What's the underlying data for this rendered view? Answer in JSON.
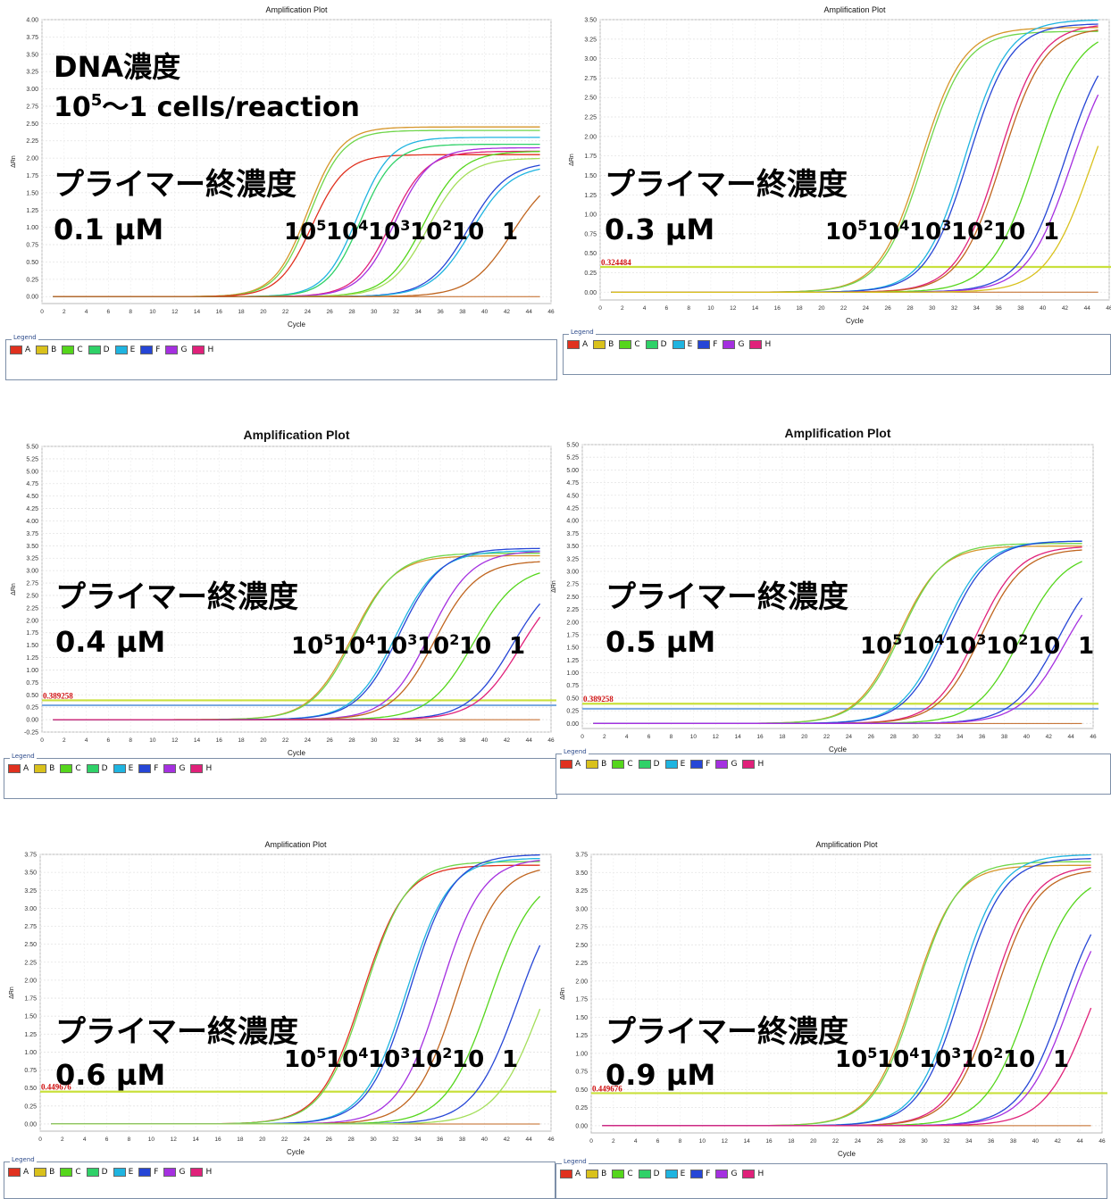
{
  "overlay": {
    "dna_title": "DNA濃度",
    "dna_range_base": "10",
    "dna_range_exp": "5",
    "dna_range_rest": "～1 cells/reaction",
    "primer_label": "プライマー終濃度",
    "dilution_series": [
      {
        "base": "10",
        "exp": "5"
      },
      {
        "base": "10",
        "exp": "4"
      },
      {
        "base": "10",
        "exp": "3"
      },
      {
        "base": "10",
        "exp": "2"
      },
      {
        "base": "10",
        "exp": ""
      },
      {
        "base": "1",
        "exp": ""
      }
    ]
  },
  "legend": {
    "title": "Legend",
    "items": [
      {
        "label": "A",
        "color": "#e0311f"
      },
      {
        "label": "B",
        "color": "#d9c11c"
      },
      {
        "label": "C",
        "color": "#55d61c"
      },
      {
        "label": "D",
        "color": "#2fd168"
      },
      {
        "label": "E",
        "color": "#1fb4e0"
      },
      {
        "label": "F",
        "color": "#2646d6"
      },
      {
        "label": "G",
        "color": "#a530e0"
      },
      {
        "label": "H",
        "color": "#e0217a"
      }
    ]
  },
  "chart_data": [
    {
      "type": "line",
      "title": "Amplification Plot",
      "xlabel": "Cycle",
      "ylabel": "ΔRn",
      "concentration": "0.1 µM",
      "threshold_label": "",
      "xlim": [
        0,
        46
      ],
      "ylim": [
        -0.1,
        4.0
      ],
      "yticks": [
        "0.00",
        "0.25",
        "0.50",
        "0.75",
        "1.00",
        "1.25",
        "1.50",
        "1.75",
        "2.00",
        "2.25",
        "2.50",
        "2.75",
        "3.00",
        "3.25",
        "3.50",
        "3.75",
        "4.00"
      ],
      "xticks": [
        "0",
        "2",
        "4",
        "6",
        "8",
        "10",
        "12",
        "14",
        "16",
        "18",
        "20",
        "22",
        "24",
        "26",
        "28",
        "30",
        "32",
        "34",
        "36",
        "38",
        "40",
        "42",
        "44",
        "46"
      ],
      "legend_position": "bottom",
      "series": [
        {
          "color": "#d6962a",
          "plateau": 2.45,
          "midpoint": 24.0,
          "slope": 1.5
        },
        {
          "color": "#6fd64a",
          "plateau": 2.4,
          "midpoint": 24.2,
          "slope": 1.5
        },
        {
          "color": "#e0311f",
          "plateau": 2.05,
          "midpoint": 24.4,
          "slope": 1.5
        },
        {
          "color": "#1fb4e0",
          "plateau": 2.3,
          "midpoint": 28.5,
          "slope": 1.5
        },
        {
          "color": "#2fd168",
          "plateau": 2.2,
          "midpoint": 28.8,
          "slope": 1.5
        },
        {
          "color": "#e0217a",
          "plateau": 2.1,
          "midpoint": 31.5,
          "slope": 1.6
        },
        {
          "color": "#a530e0",
          "plateau": 2.15,
          "midpoint": 31.9,
          "slope": 1.6
        },
        {
          "color": "#55d61c",
          "plateau": 2.1,
          "midpoint": 34.5,
          "slope": 1.7
        },
        {
          "color": "#a4de5a",
          "plateau": 2.0,
          "midpoint": 34.9,
          "slope": 1.7
        },
        {
          "color": "#2646d6",
          "plateau": 1.95,
          "midpoint": 38.5,
          "slope": 1.8
        },
        {
          "color": "#1fb4e0",
          "plateau": 1.9,
          "midpoint": 38.8,
          "slope": 1.8
        },
        {
          "color": "#c0651f",
          "plateau": 1.85,
          "midpoint": 42.5,
          "slope": 1.9
        }
      ]
    },
    {
      "type": "line",
      "title": "Amplification Plot",
      "xlabel": "Cycle",
      "ylabel": "ΔRn",
      "concentration": "0.3 µM",
      "threshold_label": "0.324484",
      "threshold": 0.324484,
      "xlim": [
        0,
        46
      ],
      "ylim": [
        -0.1,
        3.5
      ],
      "yticks": [
        "0.00",
        "0.25",
        "0.50",
        "0.75",
        "1.00",
        "1.25",
        "1.50",
        "1.75",
        "2.00",
        "2.25",
        "2.50",
        "2.75",
        "3.00",
        "3.25",
        "3.50"
      ],
      "xticks": [
        "0",
        "2",
        "4",
        "6",
        "8",
        "10",
        "12",
        "14",
        "16",
        "18",
        "20",
        "22",
        "24",
        "26",
        "28",
        "30",
        "32",
        "34",
        "36",
        "38",
        "40",
        "42",
        "44",
        "46"
      ],
      "legend_position": "bottom",
      "series": [
        {
          "color": "#d6962a",
          "plateau": 3.4,
          "midpoint": 29.0,
          "slope": 1.9
        },
        {
          "color": "#6fd64a",
          "plateau": 3.35,
          "midpoint": 29.2,
          "slope": 1.9
        },
        {
          "color": "#1fb4e0",
          "plateau": 3.5,
          "midpoint": 33.0,
          "slope": 1.9
        },
        {
          "color": "#2646d6",
          "plateau": 3.45,
          "midpoint": 33.3,
          "slope": 1.9
        },
        {
          "color": "#e0217a",
          "plateau": 3.45,
          "midpoint": 36.0,
          "slope": 1.9
        },
        {
          "color": "#c0651f",
          "plateau": 3.4,
          "midpoint": 36.3,
          "slope": 1.9
        },
        {
          "color": "#55d61c",
          "plateau": 3.4,
          "midpoint": 39.3,
          "slope": 2.0
        },
        {
          "color": "#2646d6",
          "plateau": 3.4,
          "midpoint": 42.0,
          "slope": 2.0
        },
        {
          "color": "#a530e0",
          "plateau": 3.3,
          "midpoint": 42.6,
          "slope": 2.0
        },
        {
          "color": "#d9c11c",
          "plateau": 3.2,
          "midpoint": 44.3,
          "slope": 2.0
        }
      ]
    },
    {
      "type": "line",
      "title": "Amplification Plot",
      "xlabel": "Cycle",
      "ylabel": "ΔRn",
      "concentration": "0.4 µM",
      "threshold_label": "0.389258",
      "threshold": 0.389258,
      "xlim": [
        0,
        46
      ],
      "ylim": [
        -0.25,
        5.5
      ],
      "yticks": [
        "-0.25",
        "0.00",
        "0.25",
        "0.50",
        "0.75",
        "1.00",
        "1.25",
        "1.50",
        "1.75",
        "2.00",
        "2.25",
        "2.50",
        "2.75",
        "3.00",
        "3.25",
        "3.50",
        "3.75",
        "4.00",
        "4.25",
        "4.50",
        "4.75",
        "5.00",
        "5.25",
        "5.50"
      ],
      "xticks": [
        "0",
        "2",
        "4",
        "6",
        "8",
        "10",
        "12",
        "14",
        "16",
        "18",
        "20",
        "22",
        "24",
        "26",
        "28",
        "30",
        "32",
        "34",
        "36",
        "38",
        "40",
        "42",
        "44",
        "46"
      ],
      "legend_position": "bottom",
      "series": [
        {
          "color": "#d6962a",
          "plateau": 3.3,
          "midpoint": 28.0,
          "slope": 1.9
        },
        {
          "color": "#6fd64a",
          "plateau": 3.35,
          "midpoint": 28.2,
          "slope": 1.9
        },
        {
          "color": "#1fb4e0",
          "plateau": 3.4,
          "midpoint": 32.0,
          "slope": 1.9
        },
        {
          "color": "#2646d6",
          "plateau": 3.45,
          "midpoint": 32.3,
          "slope": 1.9
        },
        {
          "color": "#a530e0",
          "plateau": 3.4,
          "midpoint": 35.0,
          "slope": 1.9
        },
        {
          "color": "#c0651f",
          "plateau": 3.2,
          "midpoint": 35.5,
          "slope": 1.9
        },
        {
          "color": "#55d61c",
          "plateau": 3.1,
          "midpoint": 39.0,
          "slope": 2.0
        },
        {
          "color": "#2646d6",
          "plateau": 3.0,
          "midpoint": 42.5,
          "slope": 2.0
        },
        {
          "color": "#e0217a",
          "plateau": 2.9,
          "midpoint": 43.2,
          "slope": 2.0
        }
      ]
    },
    {
      "type": "line",
      "title": "Amplification Plot",
      "xlabel": "Cycle",
      "ylabel": "ΔRn",
      "concentration": "0.5 µM",
      "threshold_label": "0.389258",
      "threshold": 0.389258,
      "xlim": [
        0,
        46
      ],
      "ylim": [
        -0.1,
        5.5
      ],
      "yticks": [
        "0.00",
        "0.25",
        "0.50",
        "0.75",
        "1.00",
        "1.25",
        "1.50",
        "1.75",
        "2.00",
        "2.25",
        "2.50",
        "2.75",
        "3.00",
        "3.25",
        "3.50",
        "3.75",
        "4.00",
        "4.25",
        "4.50",
        "4.75",
        "5.00",
        "5.25",
        "5.50"
      ],
      "xticks": [
        "0",
        "2",
        "4",
        "6",
        "8",
        "10",
        "12",
        "14",
        "16",
        "18",
        "20",
        "22",
        "24",
        "26",
        "28",
        "30",
        "32",
        "34",
        "36",
        "38",
        "40",
        "42",
        "44",
        "46"
      ],
      "legend_position": "bottom",
      "series": [
        {
          "color": "#d6962a",
          "plateau": 3.5,
          "midpoint": 28.5,
          "slope": 1.9
        },
        {
          "color": "#6fd64a",
          "plateau": 3.55,
          "midpoint": 28.7,
          "slope": 1.9
        },
        {
          "color": "#1fb4e0",
          "plateau": 3.6,
          "midpoint": 32.5,
          "slope": 1.9
        },
        {
          "color": "#2646d6",
          "plateau": 3.6,
          "midpoint": 32.8,
          "slope": 1.9
        },
        {
          "color": "#e0217a",
          "plateau": 3.5,
          "midpoint": 35.5,
          "slope": 1.9
        },
        {
          "color": "#c0651f",
          "plateau": 3.45,
          "midpoint": 35.9,
          "slope": 1.9
        },
        {
          "color": "#55d61c",
          "plateau": 3.4,
          "midpoint": 39.5,
          "slope": 2.0
        },
        {
          "color": "#2646d6",
          "plateau": 3.3,
          "midpoint": 42.8,
          "slope": 2.0
        },
        {
          "color": "#a530e0",
          "plateau": 3.1,
          "midpoint": 43.4,
          "slope": 2.0
        }
      ]
    },
    {
      "type": "line",
      "title": "Amplification Plot",
      "xlabel": "Cycle",
      "ylabel": "ΔRn",
      "concentration": "0.6 µM",
      "threshold_label": "0.449676",
      "threshold": 0.449676,
      "xlim": [
        0,
        46
      ],
      "ylim": [
        -0.1,
        3.75
      ],
      "yticks": [
        "0.00",
        "0.25",
        "0.50",
        "0.75",
        "1.00",
        "1.25",
        "1.50",
        "1.75",
        "2.00",
        "2.25",
        "2.50",
        "2.75",
        "3.00",
        "3.25",
        "3.50",
        "3.75"
      ],
      "xticks": [
        "0",
        "2",
        "4",
        "6",
        "8",
        "10",
        "12",
        "14",
        "16",
        "18",
        "20",
        "22",
        "24",
        "26",
        "28",
        "30",
        "32",
        "34",
        "36",
        "38",
        "40",
        "42",
        "44",
        "46"
      ],
      "legend_position": "bottom",
      "series": [
        {
          "color": "#e0311f",
          "plateau": 3.6,
          "midpoint": 29.0,
          "slope": 1.9
        },
        {
          "color": "#6fd64a",
          "plateau": 3.65,
          "midpoint": 29.2,
          "slope": 1.9
        },
        {
          "color": "#1fb4e0",
          "plateau": 3.7,
          "midpoint": 33.0,
          "slope": 1.9
        },
        {
          "color": "#2646d6",
          "plateau": 3.75,
          "midpoint": 33.3,
          "slope": 1.9
        },
        {
          "color": "#a530e0",
          "plateau": 3.7,
          "midpoint": 36.0,
          "slope": 1.9
        },
        {
          "color": "#c0651f",
          "plateau": 3.6,
          "midpoint": 37.5,
          "slope": 1.9
        },
        {
          "color": "#55d61c",
          "plateau": 3.5,
          "midpoint": 40.5,
          "slope": 2.0
        },
        {
          "color": "#2646d6",
          "plateau": 3.4,
          "midpoint": 43.0,
          "slope": 2.0
        },
        {
          "color": "#a4de5a",
          "plateau": 3.2,
          "midpoint": 45.0,
          "slope": 2.0
        }
      ]
    },
    {
      "type": "line",
      "title": "Amplification Plot",
      "xlabel": "Cycle",
      "ylabel": "ΔRn",
      "concentration": "0.9 µM",
      "threshold_label": "0.449676",
      "threshold": 0.449676,
      "xlim": [
        0,
        46
      ],
      "ylim": [
        -0.1,
        3.75
      ],
      "yticks": [
        "0.00",
        "0.25",
        "0.50",
        "0.75",
        "1.00",
        "1.25",
        "1.50",
        "1.75",
        "2.00",
        "2.25",
        "2.50",
        "2.75",
        "3.00",
        "3.25",
        "3.50",
        "3.75"
      ],
      "xticks": [
        "0",
        "2",
        "4",
        "6",
        "8",
        "10",
        "12",
        "14",
        "16",
        "18",
        "20",
        "22",
        "24",
        "26",
        "28",
        "30",
        "32",
        "34",
        "36",
        "38",
        "40",
        "42",
        "44",
        "46"
      ],
      "legend_position": "bottom",
      "series": [
        {
          "color": "#d6962a",
          "plateau": 3.6,
          "midpoint": 29.0,
          "slope": 1.9
        },
        {
          "color": "#6fd64a",
          "plateau": 3.65,
          "midpoint": 29.2,
          "slope": 1.9
        },
        {
          "color": "#1fb4e0",
          "plateau": 3.75,
          "midpoint": 33.0,
          "slope": 1.9
        },
        {
          "color": "#2646d6",
          "plateau": 3.7,
          "midpoint": 33.3,
          "slope": 1.9
        },
        {
          "color": "#e0217a",
          "plateau": 3.6,
          "midpoint": 36.0,
          "slope": 1.9
        },
        {
          "color": "#c0651f",
          "plateau": 3.55,
          "midpoint": 36.3,
          "slope": 1.9
        },
        {
          "color": "#55d61c",
          "plateau": 3.5,
          "midpoint": 39.5,
          "slope": 2.0
        },
        {
          "color": "#2646d6",
          "plateau": 3.4,
          "midpoint": 42.5,
          "slope": 2.0
        },
        {
          "color": "#a530e0",
          "plateau": 3.3,
          "midpoint": 43.0,
          "slope": 2.0
        },
        {
          "color": "#e0217a",
          "plateau": 3.1,
          "midpoint": 44.8,
          "slope": 2.0
        }
      ]
    }
  ]
}
